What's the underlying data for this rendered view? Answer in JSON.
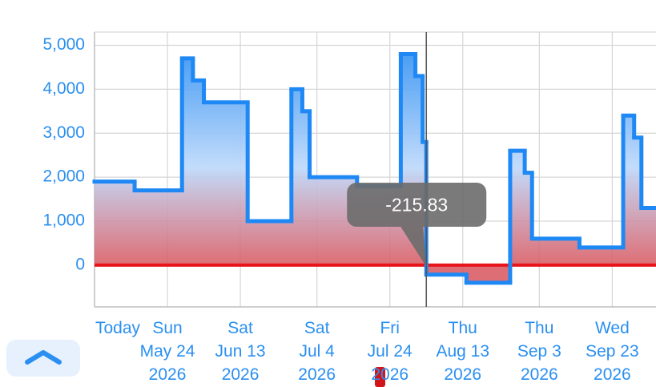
{
  "chart_data": {
    "type": "step",
    "series": [
      {
        "color": "#1e88f5",
        "x": [
          "2026-05-04",
          "2026-05-15",
          "2026-05-28",
          "2026-05-31",
          "2026-06-03",
          "2026-06-15",
          "2026-06-27",
          "2026-06-30",
          "2026-07-02",
          "2026-07-15",
          "2026-07-27",
          "2026-07-31",
          "2026-08-02",
          "2026-08-03",
          "2026-08-14",
          "2026-08-26",
          "2026-08-30",
          "2026-09-01",
          "2026-09-14",
          "2026-09-26",
          "2026-09-29",
          "2026-10-01"
        ],
        "values": [
          1900,
          1700,
          4700,
          4200,
          3700,
          1000,
          4000,
          3500,
          2000,
          1800,
          4800,
          4300,
          2800,
          -215.83,
          -400,
          2600,
          2100,
          600,
          400,
          3400,
          2900,
          1300
        ]
      }
    ],
    "xlim": [
      "2026-05-04",
      "2026-10-05"
    ],
    "xticks": [
      {
        "value": "2026-05-04",
        "label": "Today"
      },
      {
        "value": "2026-05-24",
        "label": "Sun\nMay 24\n2026"
      },
      {
        "value": "2026-06-13",
        "label": "Sat\nJun 13\n2026"
      },
      {
        "value": "2026-07-04",
        "label": "Sat\nJul 4\n2026"
      },
      {
        "value": "2026-07-24",
        "label": "Fri\nJul 24\n2026"
      },
      {
        "value": "2026-08-13",
        "label": "Thu\nAug 13\n2026"
      },
      {
        "value": "2026-09-03",
        "label": "Thu\nSep 3\n2026"
      },
      {
        "value": "2026-09-23",
        "label": "Wed\nSep 23\n2026"
      }
    ],
    "ylim": [
      -950,
      5300
    ],
    "yticks": [
      0,
      {
        "value": 1000,
        "label": "1,000"
      },
      {
        "value": 2000,
        "label": "2,000"
      },
      {
        "value": 3000,
        "label": "3,000"
      },
      {
        "value": 4000,
        "label": "4,000"
      },
      {
        "value": 5000,
        "label": "5,000"
      }
    ],
    "grid": true,
    "zero_line_color": "#e8141b",
    "tooltip_index": 13
  }
}
